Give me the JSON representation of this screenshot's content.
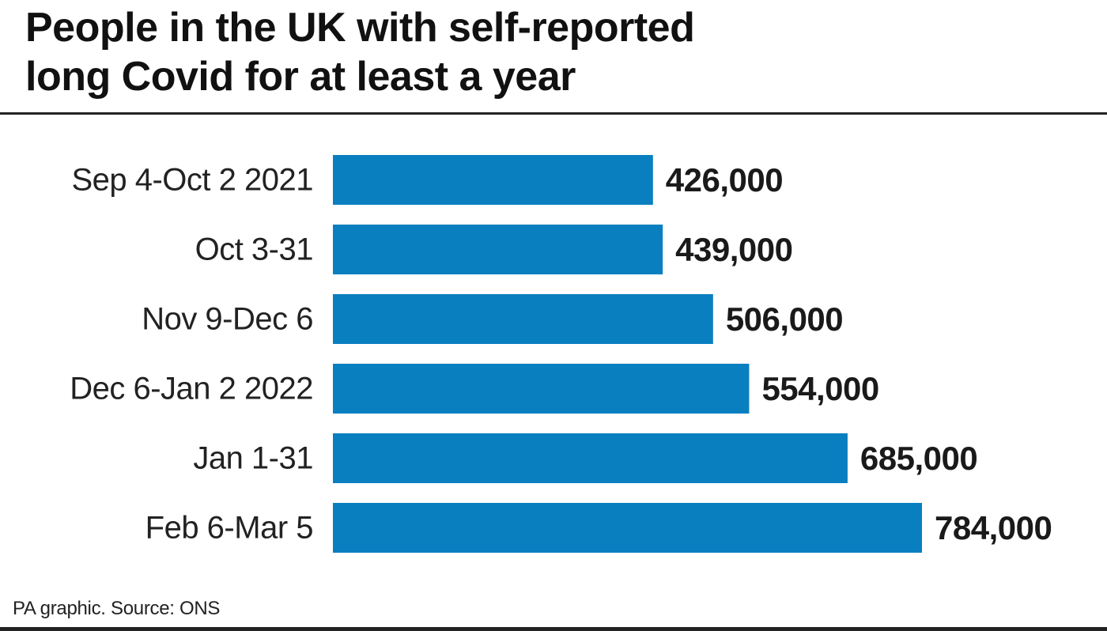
{
  "chart_data": {
    "type": "bar",
    "orientation": "horizontal",
    "title_lines": [
      "People in the UK with self-reported",
      "long Covid for at least a year"
    ],
    "categories": [
      "Sep 4-Oct 2 2021",
      "Oct 3-31",
      "Nov 9-Dec 6",
      "Dec 6-Jan 2 2022",
      "Jan 1-31",
      "Feb 6-Mar 5"
    ],
    "values": [
      426000,
      439000,
      506000,
      554000,
      685000,
      784000
    ],
    "value_labels": [
      "426,000",
      "439,000",
      "506,000",
      "554,000",
      "685,000",
      "784,000"
    ],
    "xlim": [
      0,
      784000
    ],
    "grid": false,
    "legend": "none",
    "bar_color": "#0a7fc0"
  },
  "footer": {
    "source": "PA graphic. Source: ONS"
  },
  "colors": {
    "text": "#1a1a1a",
    "rule": "#222222",
    "background": "#ffffff"
  }
}
